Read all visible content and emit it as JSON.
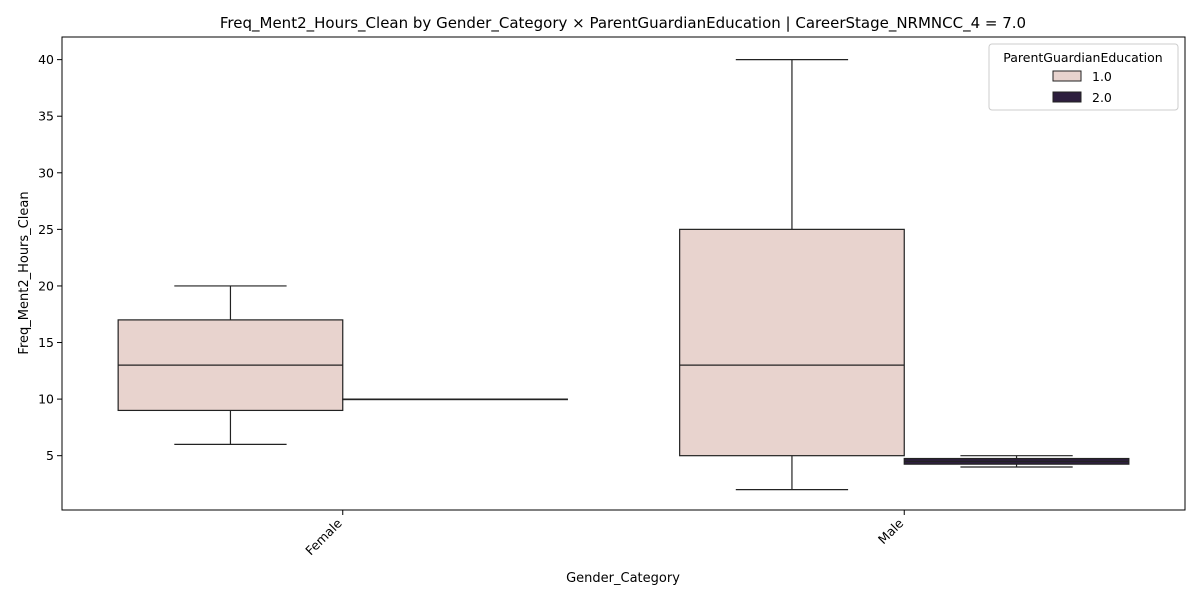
{
  "chart_data": {
    "type": "boxplot",
    "title": "Freq_Ment2_Hours_Clean by Gender_Category × ParentGuardianEducation | CareerStage_NRMNCC_4 = 7.0",
    "xlabel": "Gender_Category",
    "ylabel": "Freq_Ment2_Hours_Clean",
    "categories": [
      "Female",
      "Male"
    ],
    "ylim": [
      0.2,
      42.0
    ],
    "yticks": [
      5,
      10,
      15,
      20,
      25,
      30,
      35,
      40
    ],
    "legend": {
      "title": "ParentGuardianEducation",
      "position": "top-right"
    },
    "series": [
      {
        "name": "1.0",
        "color": "#e8d3ce",
        "boxes": [
          {
            "category": "Female",
            "whisker_low": 6,
            "q1": 9,
            "median": 13,
            "q3": 17,
            "whisker_high": 20
          },
          {
            "category": "Male",
            "whisker_low": 2,
            "q1": 5,
            "median": 13,
            "q3": 25,
            "whisker_high": 40
          }
        ]
      },
      {
        "name": "2.0",
        "color": "#2d1e3e",
        "boxes": [
          {
            "category": "Female",
            "whisker_low": 10,
            "q1": 10,
            "median": 10,
            "q3": 10,
            "whisker_high": 10
          },
          {
            "category": "Male",
            "whisker_low": 4,
            "q1": 4.25,
            "median": 4.5,
            "q3": 4.75,
            "whisker_high": 5
          }
        ]
      }
    ]
  }
}
